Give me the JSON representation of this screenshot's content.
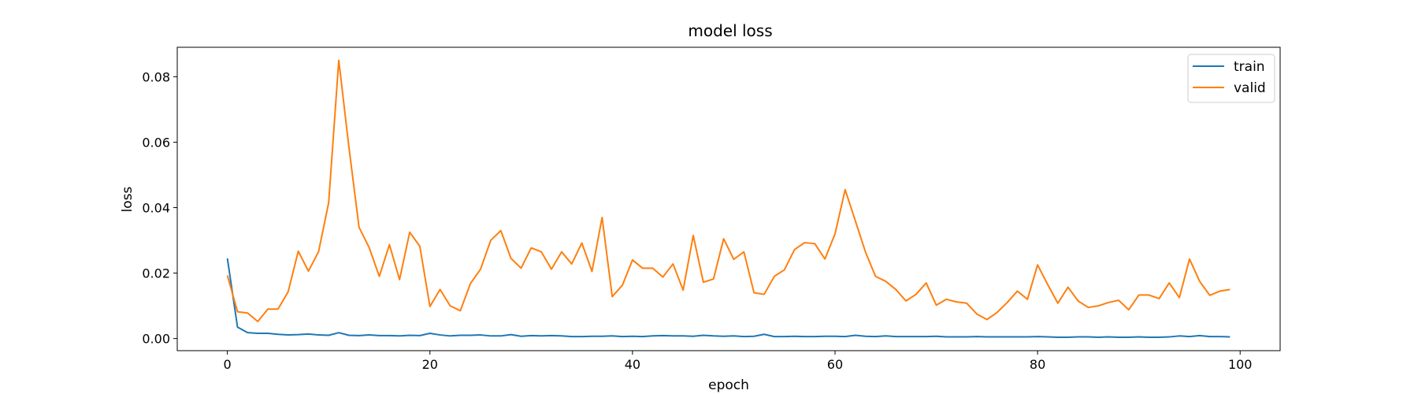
{
  "chart_data": {
    "type": "line",
    "title": "model loss",
    "xlabel": "epoch",
    "ylabel": "loss",
    "xlim": [
      -4.95,
      103.95
    ],
    "ylim": [
      -0.0037,
      0.089
    ],
    "xticks": [
      0,
      20,
      40,
      60,
      80,
      100
    ],
    "yticks": [
      0.0,
      0.02,
      0.04,
      0.06,
      0.08
    ],
    "xtick_labels": [
      "0",
      "20",
      "40",
      "60",
      "80",
      "100"
    ],
    "ytick_labels": [
      "0.00",
      "0.02",
      "0.04",
      "0.06",
      "0.08"
    ],
    "grid": false,
    "legend_position": "top-right",
    "series": [
      {
        "name": "train",
        "color": "#1f77b4",
        "values": [
          0.0245,
          0.0035,
          0.0018,
          0.0016,
          0.0016,
          0.0013,
          0.0011,
          0.0012,
          0.0014,
          0.0011,
          0.001,
          0.0018,
          0.001,
          0.0009,
          0.0011,
          0.0009,
          0.0009,
          0.0008,
          0.001,
          0.0009,
          0.0016,
          0.0011,
          0.0008,
          0.001,
          0.001,
          0.0011,
          0.0008,
          0.0008,
          0.0012,
          0.0007,
          0.0009,
          0.0008,
          0.0009,
          0.0008,
          0.0006,
          0.0006,
          0.0007,
          0.0007,
          0.0008,
          0.0006,
          0.0007,
          0.0006,
          0.0008,
          0.0009,
          0.0008,
          0.0008,
          0.0007,
          0.001,
          0.0008,
          0.0007,
          0.0008,
          0.0006,
          0.0007,
          0.0013,
          0.0006,
          0.0006,
          0.0007,
          0.0006,
          0.0006,
          0.0007,
          0.0007,
          0.0006,
          0.001,
          0.0007,
          0.0006,
          0.0008,
          0.0006,
          0.0006,
          0.0006,
          0.0006,
          0.0007,
          0.0005,
          0.0005,
          0.0005,
          0.0006,
          0.0005,
          0.0005,
          0.0005,
          0.0005,
          0.0005,
          0.0006,
          0.0005,
          0.0004,
          0.0004,
          0.0005,
          0.0005,
          0.0004,
          0.0005,
          0.0004,
          0.0004,
          0.0005,
          0.0004,
          0.0004,
          0.0005,
          0.0008,
          0.0006,
          0.0009,
          0.0006,
          0.0006,
          0.0005
        ]
      },
      {
        "name": "valid",
        "color": "#ff7f0e",
        "values": [
          0.0193,
          0.0082,
          0.0078,
          0.0052,
          0.009,
          0.009,
          0.0143,
          0.0267,
          0.0206,
          0.0265,
          0.0415,
          0.085,
          0.0585,
          0.034,
          0.0278,
          0.019,
          0.0287,
          0.018,
          0.0325,
          0.0282,
          0.0098,
          0.015,
          0.01,
          0.0085,
          0.0168,
          0.0212,
          0.03,
          0.033,
          0.0245,
          0.0215,
          0.0277,
          0.0265,
          0.0212,
          0.0265,
          0.0228,
          0.0292,
          0.0205,
          0.037,
          0.0128,
          0.0163,
          0.024,
          0.0215,
          0.0215,
          0.0188,
          0.0228,
          0.0148,
          0.0315,
          0.0172,
          0.0182,
          0.0305,
          0.0242,
          0.0265,
          0.014,
          0.0135,
          0.019,
          0.021,
          0.0272,
          0.0293,
          0.029,
          0.0243,
          0.032,
          0.0455,
          0.036,
          0.0265,
          0.019,
          0.0175,
          0.015,
          0.0115,
          0.0135,
          0.017,
          0.0102,
          0.012,
          0.0112,
          0.0108,
          0.0075,
          0.0058,
          0.008,
          0.011,
          0.0145,
          0.012,
          0.0225,
          0.0165,
          0.0108,
          0.0157,
          0.0115,
          0.0095,
          0.01,
          0.011,
          0.0117,
          0.0088,
          0.0133,
          0.0133,
          0.0122,
          0.017,
          0.0125,
          0.0243,
          0.0175,
          0.0132,
          0.0145,
          0.015
        ]
      }
    ]
  }
}
